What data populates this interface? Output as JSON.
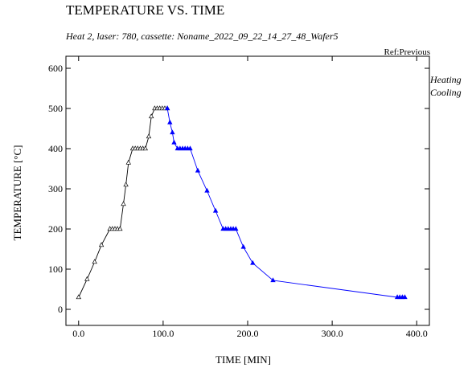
{
  "chart_data": {
    "type": "line",
    "title": "TEMPERATURE VS. TIME",
    "subtitle": "Heat 2, laser: 780, cassette: Noname_2022_09_22_14_27_48_Wafer5",
    "reference": "Ref:Previous",
    "xlabel": "TIME    [MIN]",
    "ylabel": "TEMPERATURE    [°C]",
    "xlim": [
      -15,
      415
    ],
    "ylim": [
      -40,
      630
    ],
    "x_ticks": [
      0,
      100,
      200,
      300,
      400
    ],
    "x_tick_labels": [
      "0.0",
      "100.0",
      "200.0",
      "300.0",
      "400.0"
    ],
    "y_ticks": [
      0,
      100,
      200,
      300,
      400,
      500,
      600
    ],
    "y_tick_labels": [
      "0",
      "100",
      "200",
      "300",
      "400",
      "500",
      "600"
    ],
    "grid": false,
    "legend_position": "right",
    "series": [
      {
        "name": "Heating",
        "color": "#000000",
        "marker": "open-triangle",
        "points": [
          [
            0,
            30
          ],
          [
            10,
            75
          ],
          [
            19,
            118
          ],
          [
            27,
            160
          ],
          [
            37,
            200
          ],
          [
            40,
            200
          ],
          [
            43,
            200
          ],
          [
            46,
            200
          ],
          [
            49,
            200
          ],
          [
            53,
            262
          ],
          [
            56,
            310
          ],
          [
            59,
            365
          ],
          [
            64,
            400
          ],
          [
            67,
            400
          ],
          [
            70,
            400
          ],
          [
            73,
            400
          ],
          [
            76,
            400
          ],
          [
            79,
            400
          ],
          [
            83,
            430
          ],
          [
            86,
            480
          ],
          [
            90,
            500
          ],
          [
            93,
            500
          ],
          [
            96,
            500
          ],
          [
            99,
            500
          ],
          [
            102,
            500
          ],
          [
            105,
            500
          ]
        ]
      },
      {
        "name": "Cooling",
        "color": "#0000ff",
        "marker": "filled-triangle",
        "points": [
          [
            105,
            500
          ],
          [
            108,
            465
          ],
          [
            111,
            440
          ],
          [
            113,
            415
          ],
          [
            117,
            400
          ],
          [
            120,
            400
          ],
          [
            123,
            400
          ],
          [
            126,
            400
          ],
          [
            129,
            400
          ],
          [
            132,
            400
          ],
          [
            141,
            345
          ],
          [
            152,
            295
          ],
          [
            162,
            245
          ],
          [
            171,
            200
          ],
          [
            174,
            200
          ],
          [
            177,
            200
          ],
          [
            180,
            200
          ],
          [
            183,
            200
          ],
          [
            186,
            200
          ],
          [
            195,
            155
          ],
          [
            206,
            115
          ],
          [
            230,
            72
          ],
          [
            377,
            30
          ],
          [
            380,
            30
          ],
          [
            383,
            30
          ],
          [
            386,
            30
          ]
        ]
      }
    ]
  }
}
